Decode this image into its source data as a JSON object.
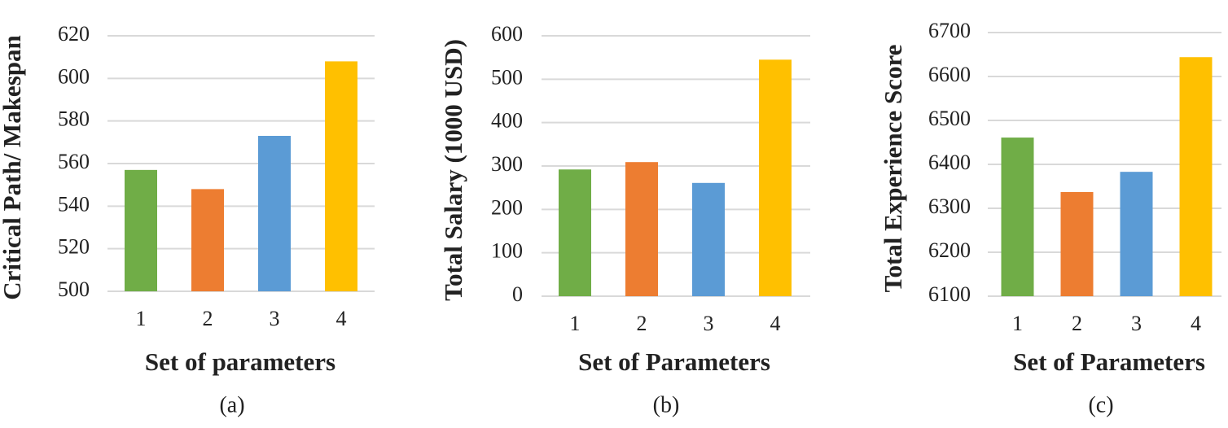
{
  "chart_data": [
    {
      "type": "bar",
      "caption": "(a)",
      "y_label": "Critical Path/ Makespan",
      "x_label": "Set of parameters",
      "categories": [
        "1",
        "2",
        "3",
        "4"
      ],
      "values": [
        557,
        548,
        573,
        608
      ],
      "colors": [
        "#70ad47",
        "#ed7d31",
        "#5b9bd5",
        "#ffc000"
      ],
      "ylim": [
        500,
        620
      ],
      "yticks": [
        500,
        520,
        540,
        560,
        580,
        600,
        620
      ],
      "grid": true
    },
    {
      "type": "bar",
      "caption": "(b)",
      "y_label": "Total Salary (1000 USD)",
      "x_label": "Set of Parameters",
      "categories": [
        "1",
        "2",
        "3",
        "4"
      ],
      "values": [
        292,
        309,
        261,
        545
      ],
      "colors": [
        "#70ad47",
        "#ed7d31",
        "#5b9bd5",
        "#ffc000"
      ],
      "ylim": [
        0,
        600
      ],
      "yticks": [
        0,
        100,
        200,
        300,
        400,
        500,
        600
      ],
      "grid": true
    },
    {
      "type": "bar",
      "caption": "(c)",
      "y_label": "Total Experience Score",
      "x_label": "Set of Parameters",
      "categories": [
        "1",
        "2",
        "3",
        "4"
      ],
      "values": [
        6461,
        6337,
        6383,
        6644
      ],
      "colors": [
        "#70ad47",
        "#ed7d31",
        "#5b9bd5",
        "#ffc000"
      ],
      "ylim": [
        6100,
        6700
      ],
      "yticks": [
        6100,
        6200,
        6300,
        6400,
        6500,
        6600,
        6700
      ],
      "grid": true
    }
  ]
}
